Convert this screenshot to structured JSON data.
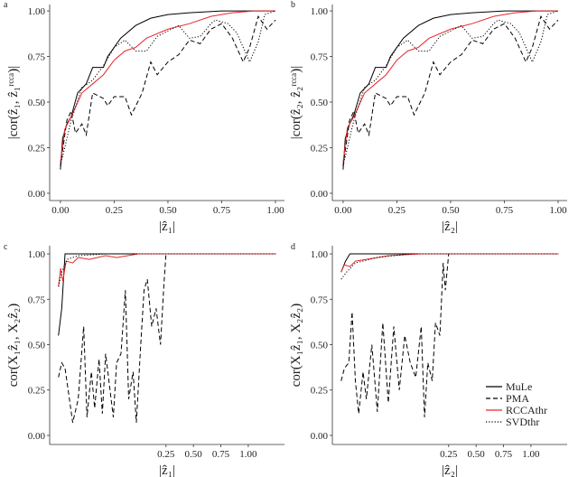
{
  "chart_data": [
    {
      "type": "line",
      "panel": "a",
      "xlabel": "|ẑ₁|",
      "ylabel": "|cor(ẑ₁, ẑ₁ʳᶜᶜᵃ)|",
      "xlim": [
        -0.05,
        1.042
      ],
      "ylim": [
        -0.04,
        1.035
      ],
      "xticks": [
        {
          "value": 0,
          "label": "0.00"
        },
        0.25,
        {
          "value": 0.5,
          "label": "0.50"
        },
        0.75,
        {
          "value": 1,
          "label": "1.00"
        }
      ],
      "yticks": [
        {
          "value": 0,
          "label": "0.00"
        },
        0.25,
        {
          "value": 0.5,
          "label": "0.50"
        },
        0.75,
        {
          "value": 1,
          "label": "1.00"
        }
      ],
      "series": [
        {
          "color": "#000000",
          "dash": "solid",
          "x": [
            0,
            0.01,
            0.03,
            0.05,
            0.08,
            0.12,
            0.15,
            0.2,
            0.22,
            0.28,
            0.35,
            0.42,
            0.5,
            0.6,
            0.75,
            1.0
          ],
          "values": [
            0.13,
            0.3,
            0.38,
            0.42,
            0.55,
            0.6,
            0.69,
            0.69,
            0.75,
            0.85,
            0.92,
            0.96,
            0.98,
            0.99,
            1.0,
            1.0
          ]
        },
        {
          "color": "#000000",
          "dash": "dashed",
          "x": [
            0,
            0.03,
            0.05,
            0.07,
            0.1,
            0.12,
            0.15,
            0.2,
            0.22,
            0.25,
            0.3,
            0.33,
            0.38,
            0.42,
            0.45,
            0.5,
            0.55,
            0.6,
            0.65,
            0.7,
            0.75,
            0.8,
            0.85,
            0.88,
            0.92,
            0.96,
            1.0
          ],
          "values": [
            0.15,
            0.4,
            0.45,
            0.33,
            0.38,
            0.32,
            0.55,
            0.52,
            0.48,
            0.53,
            0.53,
            0.43,
            0.55,
            0.72,
            0.65,
            0.72,
            0.76,
            0.84,
            0.82,
            0.9,
            0.93,
            0.85,
            0.72,
            0.8,
            0.97,
            0.9,
            0.95
          ]
        },
        {
          "color": "#e8262b",
          "dash": "solid",
          "x": [
            0,
            0.02,
            0.05,
            0.1,
            0.15,
            0.2,
            0.25,
            0.3,
            0.35,
            0.4,
            0.5,
            0.6,
            0.7,
            0.8,
            0.9,
            1.0
          ],
          "values": [
            0.17,
            0.35,
            0.42,
            0.55,
            0.6,
            0.65,
            0.73,
            0.78,
            0.8,
            0.85,
            0.9,
            0.93,
            0.97,
            0.99,
            1.0,
            1.0
          ]
        },
        {
          "color": "#000000",
          "dash": "dotted",
          "x": [
            0,
            0.05,
            0.1,
            0.15,
            0.2,
            0.25,
            0.3,
            0.35,
            0.4,
            0.45,
            0.55,
            0.6,
            0.65,
            0.7,
            0.72,
            0.78,
            0.82,
            0.88,
            0.92,
            0.95,
            1.0
          ],
          "values": [
            0.15,
            0.4,
            0.58,
            0.62,
            0.7,
            0.8,
            0.84,
            0.78,
            0.78,
            0.86,
            0.92,
            0.85,
            0.86,
            0.93,
            0.95,
            0.93,
            0.88,
            0.72,
            0.83,
            0.98,
            1.0
          ]
        }
      ]
    },
    {
      "type": "line",
      "panel": "b",
      "xlabel": "|ẑ₂|",
      "ylabel": "|cor(ẑ₂, ẑ₂ʳᶜᶜᵃ)|",
      "xlim": [
        -0.05,
        1.042
      ],
      "ylim": [
        -0.04,
        1.035
      ],
      "xticks": [
        {
          "value": 0,
          "label": "0.00"
        },
        0.25,
        {
          "value": 0.5,
          "label": "0.50"
        },
        0.75,
        {
          "value": 1,
          "label": "1.00"
        }
      ],
      "yticks": [
        {
          "value": 0,
          "label": "0.00"
        },
        0.25,
        {
          "value": 0.5,
          "label": "0.50"
        },
        0.75,
        {
          "value": 1,
          "label": "1.00"
        }
      ],
      "series": [
        {
          "color": "#000000",
          "dash": "solid",
          "x": [
            0,
            0.01,
            0.03,
            0.05,
            0.08,
            0.12,
            0.15,
            0.2,
            0.22,
            0.28,
            0.35,
            0.42,
            0.5,
            0.6,
            0.75,
            1.0
          ],
          "values": [
            0.13,
            0.3,
            0.38,
            0.43,
            0.55,
            0.6,
            0.69,
            0.69,
            0.75,
            0.85,
            0.92,
            0.96,
            0.98,
            0.99,
            1.0,
            1.0
          ]
        },
        {
          "color": "#000000",
          "dash": "dashed",
          "x": [
            0,
            0.03,
            0.05,
            0.07,
            0.1,
            0.12,
            0.15,
            0.2,
            0.22,
            0.25,
            0.3,
            0.33,
            0.38,
            0.42,
            0.45,
            0.5,
            0.55,
            0.6,
            0.65,
            0.7,
            0.75,
            0.8,
            0.85,
            0.88,
            0.92,
            0.96,
            1.0
          ],
          "values": [
            0.15,
            0.4,
            0.45,
            0.33,
            0.38,
            0.32,
            0.55,
            0.52,
            0.48,
            0.53,
            0.53,
            0.43,
            0.55,
            0.72,
            0.65,
            0.72,
            0.76,
            0.84,
            0.82,
            0.9,
            0.93,
            0.85,
            0.72,
            0.8,
            0.97,
            0.9,
            0.95
          ]
        },
        {
          "color": "#e8262b",
          "dash": "solid",
          "x": [
            0,
            0.02,
            0.05,
            0.1,
            0.15,
            0.2,
            0.25,
            0.3,
            0.35,
            0.4,
            0.5,
            0.6,
            0.7,
            0.8,
            0.9,
            1.0
          ],
          "values": [
            0.17,
            0.36,
            0.42,
            0.55,
            0.6,
            0.65,
            0.73,
            0.78,
            0.8,
            0.85,
            0.9,
            0.93,
            0.97,
            0.99,
            1.0,
            1.0
          ]
        },
        {
          "color": "#000000",
          "dash": "dotted",
          "x": [
            0,
            0.05,
            0.1,
            0.15,
            0.2,
            0.25,
            0.3,
            0.35,
            0.4,
            0.45,
            0.55,
            0.6,
            0.65,
            0.7,
            0.72,
            0.78,
            0.82,
            0.88,
            0.92,
            0.95,
            1.0
          ],
          "values": [
            0.15,
            0.4,
            0.58,
            0.62,
            0.7,
            0.8,
            0.84,
            0.78,
            0.78,
            0.86,
            0.92,
            0.85,
            0.86,
            0.93,
            0.95,
            0.93,
            0.88,
            0.72,
            0.83,
            0.98,
            1.0
          ]
        }
      ]
    },
    {
      "type": "line",
      "panel": "c",
      "xlabel": "|ẑ₁|",
      "ylabel": "cor(X₁ẑ₁, X₂ẑ₂)",
      "xlim": [
        -0.81,
        1.33
      ],
      "ylim": [
        -0.05,
        1.045
      ],
      "xticks": [
        0.25,
        {
          "value": 0.5,
          "label": "0.50"
        },
        0.75,
        {
          "value": 1,
          "label": "1.00"
        }
      ],
      "yticks": [
        {
          "value": 0,
          "label": "0.00"
        },
        0.25,
        {
          "value": 0.5,
          "label": "0.50"
        },
        0.75,
        {
          "value": 1,
          "label": "1.00"
        }
      ],
      "series": [
        {
          "color": "#000000",
          "dash": "solid",
          "x": [
            -0.73,
            -0.7,
            -0.67,
            1.25
          ],
          "values": [
            0.55,
            0.7,
            1.0,
            1.0
          ]
        },
        {
          "color": "#000000",
          "dash": "dashed",
          "x": [
            -0.73,
            -0.7,
            -0.67,
            -0.63,
            -0.6,
            -0.55,
            -0.5,
            -0.47,
            -0.43,
            -0.4,
            -0.36,
            -0.33,
            -0.3,
            -0.27,
            -0.23,
            -0.2,
            -0.16,
            -0.12,
            -0.09,
            -0.05,
            -0.02,
            0.02,
            0.05,
            0.08,
            0.12,
            0.16,
            0.2,
            0.23,
            0.25,
            1.25
          ],
          "values": [
            0.32,
            0.4,
            0.37,
            0.2,
            0.07,
            0.2,
            0.6,
            0.1,
            0.35,
            0.15,
            0.42,
            0.12,
            0.45,
            0.3,
            0.1,
            0.4,
            0.45,
            0.8,
            0.2,
            0.35,
            0.07,
            0.5,
            0.8,
            0.86,
            0.6,
            0.7,
            0.5,
            0.82,
            1.0,
            1.0
          ]
        },
        {
          "color": "#e8262b",
          "dash": "solid",
          "x": [
            -0.73,
            -0.71,
            -0.69,
            -0.66,
            -0.6,
            -0.55,
            -0.45,
            -0.3,
            -0.2,
            0,
            1.25
          ],
          "values": [
            0.82,
            0.92,
            0.85,
            0.96,
            0.95,
            0.98,
            0.97,
            0.99,
            0.98,
            1.0,
            1.0
          ]
        },
        {
          "color": "#000000",
          "dash": "dotted",
          "x": [
            -0.73,
            -0.7,
            -0.65,
            -0.55,
            -0.3,
            1.25
          ],
          "values": [
            0.82,
            0.9,
            0.97,
            0.99,
            1.0,
            1.0
          ]
        }
      ]
    },
    {
      "type": "line",
      "panel": "d",
      "xlabel": "|ẑ₂|",
      "ylabel": "cor(X₁ẑ₁, X₂ẑ₂)",
      "xlim": [
        -0.81,
        1.33
      ],
      "ylim": [
        -0.05,
        1.045
      ],
      "xticks": [
        0.25,
        {
          "value": 0.5,
          "label": "0.50"
        },
        0.75,
        {
          "value": 1,
          "label": "1.00"
        }
      ],
      "yticks": [
        {
          "value": 0,
          "label": "0.00"
        },
        0.25,
        {
          "value": 0.5,
          "label": "0.50"
        },
        0.75,
        {
          "value": 1,
          "label": "1.00"
        }
      ],
      "legend": "lower right",
      "series": [
        {
          "name": "MuLe",
          "color": "#000000",
          "dash": "solid",
          "x": [
            -0.73,
            -0.69,
            -0.65,
            1.25
          ],
          "values": [
            0.9,
            0.96,
            1.0,
            1.0
          ]
        },
        {
          "name": "PMA",
          "color": "#000000",
          "dash": "dashed",
          "x": [
            -0.73,
            -0.7,
            -0.66,
            -0.63,
            -0.6,
            -0.57,
            -0.53,
            -0.5,
            -0.45,
            -0.4,
            -0.35,
            -0.3,
            -0.25,
            -0.2,
            -0.15,
            -0.1,
            -0.05,
            0,
            0.03,
            0.06,
            0.1,
            0.13,
            0.17,
            0.2,
            0.22,
            0.25,
            1.25
          ],
          "values": [
            0.3,
            0.37,
            0.4,
            0.68,
            0.3,
            0.12,
            0.35,
            0.2,
            0.5,
            0.13,
            0.62,
            0.18,
            0.6,
            0.25,
            0.55,
            0.4,
            0.32,
            0.6,
            0.1,
            0.4,
            0.3,
            0.62,
            0.55,
            0.95,
            0.8,
            1.0,
            1.0
          ]
        },
        {
          "name": "RCCAthr",
          "color": "#e8262b",
          "dash": "solid",
          "x": [
            -0.73,
            -0.7,
            -0.65,
            -0.6,
            -0.5,
            -0.3,
            0,
            1.25
          ],
          "values": [
            0.9,
            0.94,
            0.93,
            0.96,
            0.97,
            0.99,
            1.0,
            1.0
          ]
        },
        {
          "name": "SVDthr",
          "color": "#000000",
          "dash": "dotted",
          "x": [
            -0.73,
            -0.68,
            -0.6,
            -0.4,
            -0.1,
            1.25
          ],
          "values": [
            0.86,
            0.9,
            0.95,
            0.98,
            1.0,
            1.0
          ]
        }
      ]
    }
  ]
}
